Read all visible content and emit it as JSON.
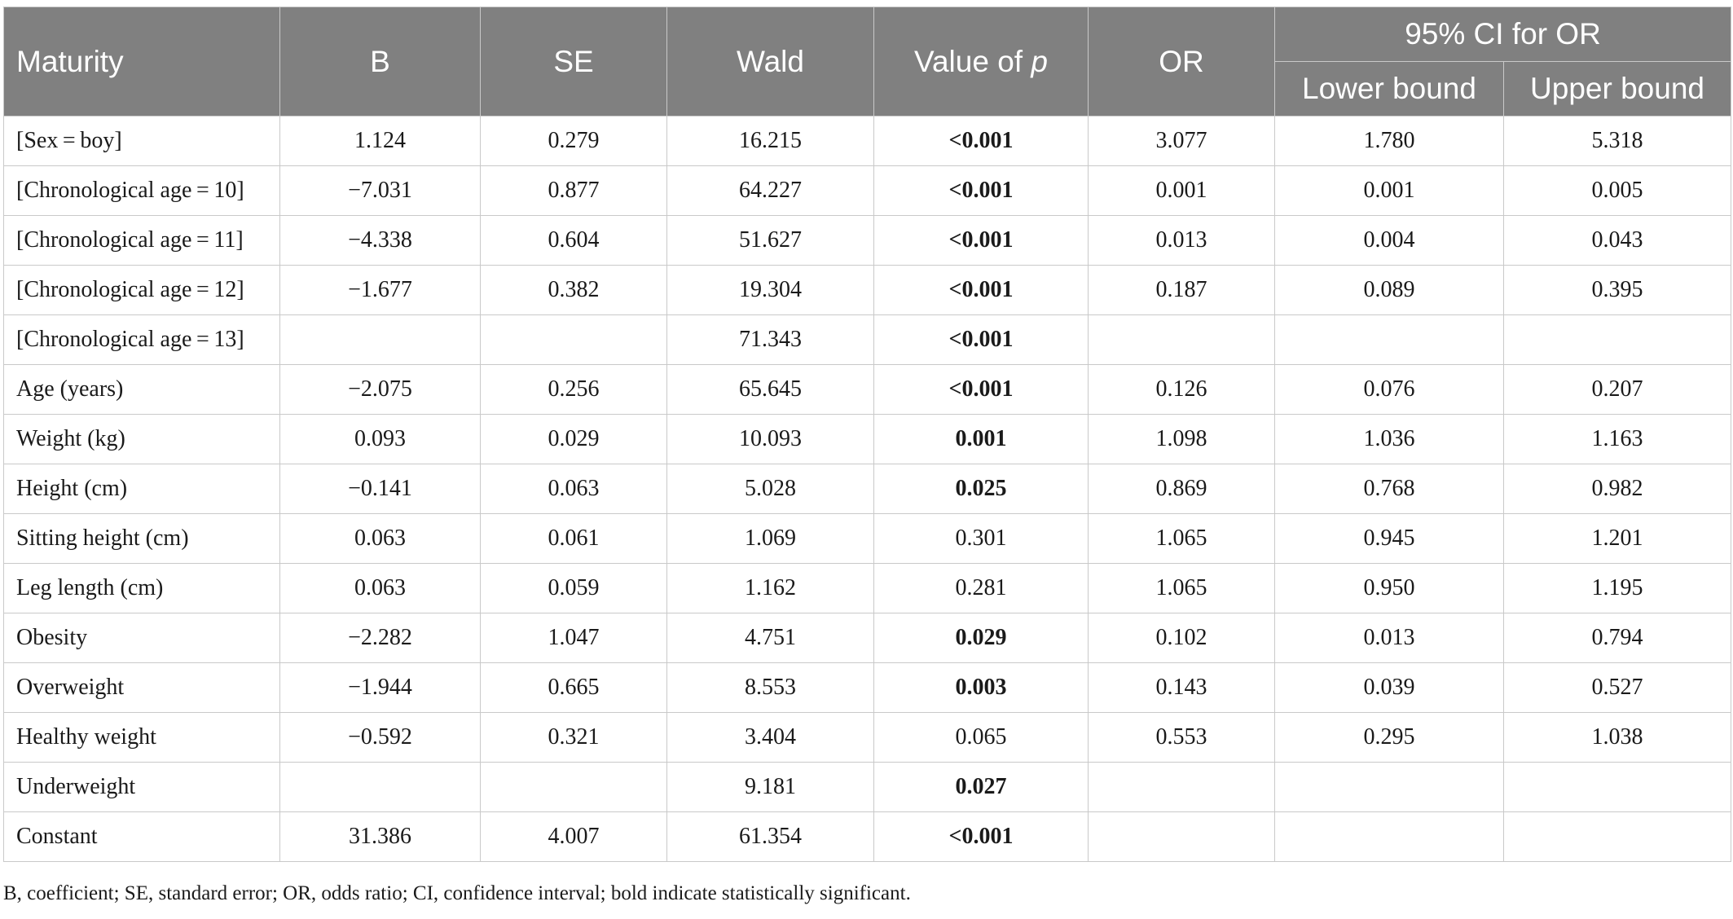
{
  "header": {
    "maturity": "Maturity",
    "b": "B",
    "se": "SE",
    "wald": "Wald",
    "value_of_p_prefix": "Value of ",
    "value_of_p_italic": "p",
    "or": "OR",
    "ci_group": "95% CI for OR",
    "lower_bound": "Lower bound",
    "upper_bound": "Upper bound"
  },
  "rows": [
    {
      "variable": "[Sex = boy]",
      "b": "1.124",
      "se": "0.279",
      "wald": "16.215",
      "p": "<0.001",
      "p_sig": true,
      "or": "3.077",
      "lower": "1.780",
      "upper": "5.318"
    },
    {
      "variable": "[Chronological age = 10]",
      "b": "−7.031",
      "se": "0.877",
      "wald": "64.227",
      "p": "<0.001",
      "p_sig": true,
      "or": "0.001",
      "lower": "0.001",
      "upper": "0.005"
    },
    {
      "variable": "[Chronological age = 11]",
      "b": "−4.338",
      "se": "0.604",
      "wald": "51.627",
      "p": "<0.001",
      "p_sig": true,
      "or": "0.013",
      "lower": "0.004",
      "upper": "0.043"
    },
    {
      "variable": "[Chronological age = 12]",
      "b": "−1.677",
      "se": "0.382",
      "wald": "19.304",
      "p": "<0.001",
      "p_sig": true,
      "or": "0.187",
      "lower": "0.089",
      "upper": "0.395"
    },
    {
      "variable": "[Chronological age = 13]",
      "b": "",
      "se": "",
      "wald": "71.343",
      "p": "<0.001",
      "p_sig": true,
      "or": "",
      "lower": "",
      "upper": ""
    },
    {
      "variable": "Age (years)",
      "b": "−2.075",
      "se": "0.256",
      "wald": "65.645",
      "p": "<0.001",
      "p_sig": true,
      "or": "0.126",
      "lower": "0.076",
      "upper": "0.207"
    },
    {
      "variable": "Weight (kg)",
      "b": "0.093",
      "se": "0.029",
      "wald": "10.093",
      "p": "0.001",
      "p_sig": true,
      "or": "1.098",
      "lower": "1.036",
      "upper": "1.163"
    },
    {
      "variable": "Height (cm)",
      "b": "−0.141",
      "se": "0.063",
      "wald": "5.028",
      "p": "0.025",
      "p_sig": true,
      "or": "0.869",
      "lower": "0.768",
      "upper": "0.982"
    },
    {
      "variable": "Sitting height (cm)",
      "b": "0.063",
      "se": "0.061",
      "wald": "1.069",
      "p": "0.301",
      "p_sig": false,
      "or": "1.065",
      "lower": "0.945",
      "upper": "1.201"
    },
    {
      "variable": "Leg length (cm)",
      "b": "0.063",
      "se": "0.059",
      "wald": "1.162",
      "p": "0.281",
      "p_sig": false,
      "or": "1.065",
      "lower": "0.950",
      "upper": "1.195"
    },
    {
      "variable": "Obesity",
      "b": "−2.282",
      "se": "1.047",
      "wald": "4.751",
      "p": "0.029",
      "p_sig": true,
      "or": "0.102",
      "lower": "0.013",
      "upper": "0.794"
    },
    {
      "variable": "Overweight",
      "b": "−1.944",
      "se": "0.665",
      "wald": "8.553",
      "p": "0.003",
      "p_sig": true,
      "or": "0.143",
      "lower": "0.039",
      "upper": "0.527"
    },
    {
      "variable": "Healthy weight",
      "b": "−0.592",
      "se": "0.321",
      "wald": "3.404",
      "p": "0.065",
      "p_sig": false,
      "or": "0.553",
      "lower": "0.295",
      "upper": "1.038"
    },
    {
      "variable": "Underweight",
      "b": "",
      "se": "",
      "wald": "9.181",
      "p": "0.027",
      "p_sig": true,
      "or": "",
      "lower": "",
      "upper": ""
    },
    {
      "variable": "Constant",
      "b": "31.386",
      "se": "4.007",
      "wald": "61.354",
      "p": "<0.001",
      "p_sig": true,
      "or": "",
      "lower": "",
      "upper": ""
    }
  ],
  "footnote": "B, coefficient; SE, standard error; OR, odds ratio; CI, confidence interval; bold indicate statistically significant."
}
